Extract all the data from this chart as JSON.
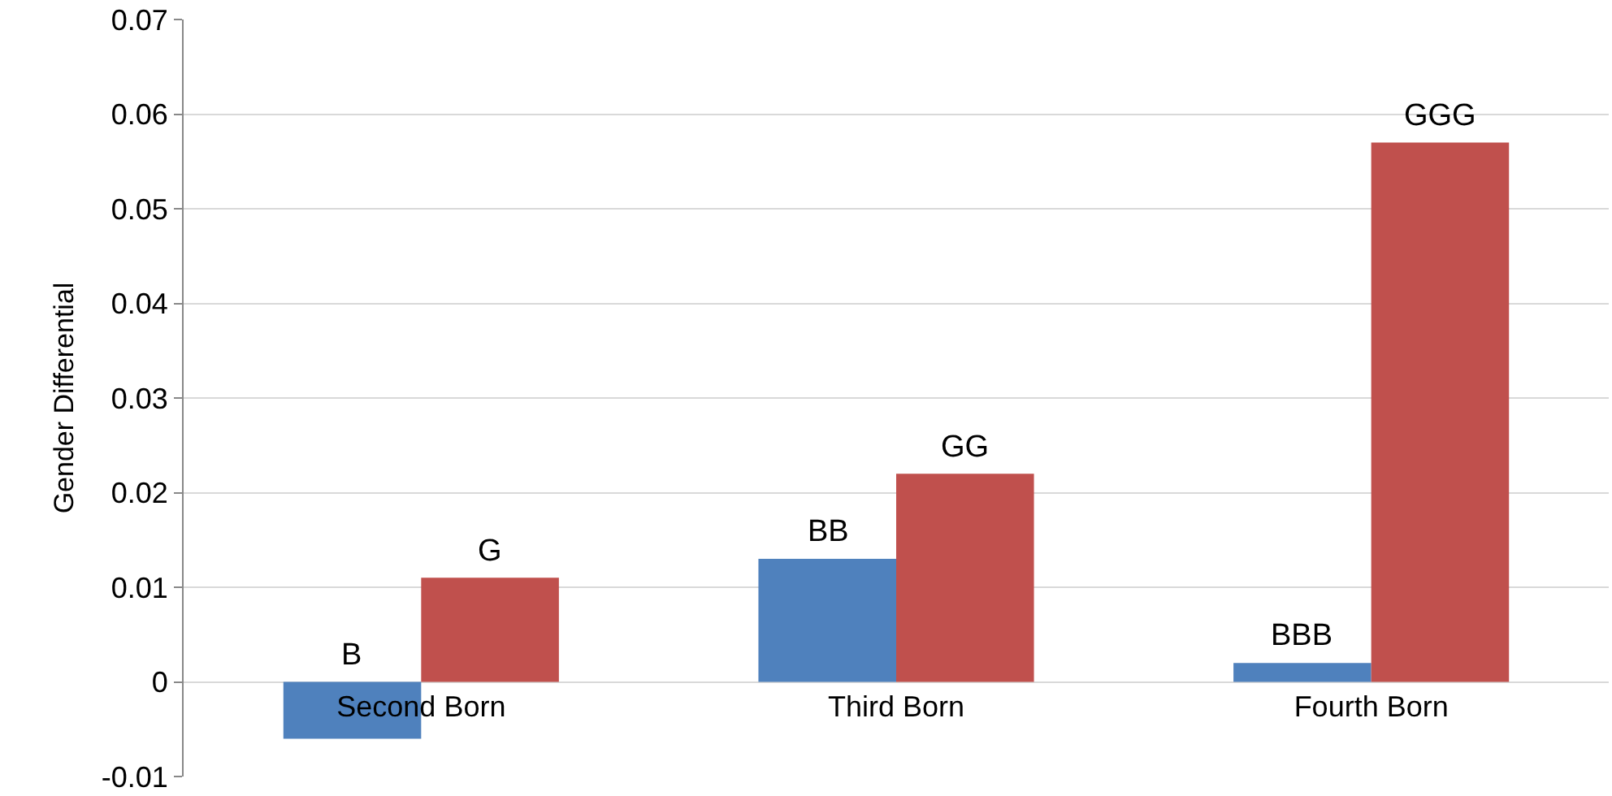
{
  "chart_data": {
    "type": "bar",
    "ylabel": "Gender Differential",
    "categories": [
      "Second Born",
      "Third Born",
      "Fourth Born"
    ],
    "series": [
      {
        "color": "#4f81bd",
        "values": [
          -0.006,
          0.013,
          0.002
        ],
        "value_labels": [
          "B",
          "BB",
          "BBB"
        ]
      },
      {
        "color": "#c0504d",
        "values": [
          0.011,
          0.022,
          0.057
        ],
        "value_labels": [
          "G",
          "GG",
          "GGG"
        ]
      }
    ],
    "ylim": [
      -0.01,
      0.07
    ],
    "yticks": [
      -0.01,
      0,
      0.01,
      0.02,
      0.03,
      0.04,
      0.05,
      0.06,
      0.07
    ],
    "grid": "y"
  }
}
